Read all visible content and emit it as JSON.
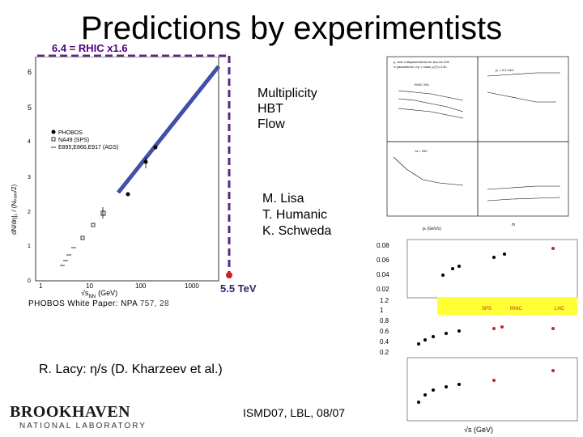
{
  "slide": {
    "title": "Predictions by experimentists",
    "scale_note": "6.4 = RHIC x1.6",
    "probes": [
      "Multiplicity",
      "HBT",
      "Flow"
    ],
    "authors": [
      "M. Lisa",
      "T. Humanic",
      "K. Schweda"
    ],
    "lhc_energy": "5.5 TeV",
    "phobos_ref_text": "PHOBOS White Paper: NPA ",
    "phobos_ref_nums": "757, 28",
    "lacy_line": "R. Lacy: η/s (D. Kharzeev et al.)",
    "conference": "ISMD07, LBL, 08/07",
    "logo_top": "BROOKHAVEN",
    "logo_bottom": "NATIONAL LABORATORY"
  },
  "multiplicity_plot": {
    "ytick_labels": [
      "6",
      "5",
      "4",
      "3",
      "2",
      "1",
      "0"
    ],
    "xtick_labels": [
      "1",
      "10",
      "100",
      "1000"
    ],
    "xlabel": "√s",
    "xlabel_sub": "NN",
    "xlabel_unit": "(GeV)",
    "legend": [
      "PHOBOS",
      "NA49 (SPS)",
      "E895,E866,E917 (AGS)"
    ],
    "colors": {
      "fit_line": "#4050a8",
      "dashed_guide": "#5a2a82",
      "lhc_marker": "#cc2222"
    }
  },
  "hbt_plot": {
    "legend_lines": [
      "p, and π displacements for two-Au 200",
      "π parametrics: πp = mass, p(T)=1.6c",
      "RHIC 200"
    ],
    "xlabel": "pₜ (GeV/c)",
    "xlabel2": "m",
    "panel_labels": [
      "√s = 200",
      "pₜ = 0.2 GeV"
    ]
  },
  "flow_plot": {
    "yticks_top": [
      "0.08",
      "0.06",
      "0.04",
      "0.02"
    ],
    "yticks_mid": [
      "1.2",
      "1",
      "0.8",
      "0.6",
      "0.4",
      "0.2"
    ],
    "band_labels": [
      "SPS",
      "RHIC",
      "LHC"
    ],
    "xlabel": "√s",
    "xlabel_unit": "(GeV)"
  }
}
